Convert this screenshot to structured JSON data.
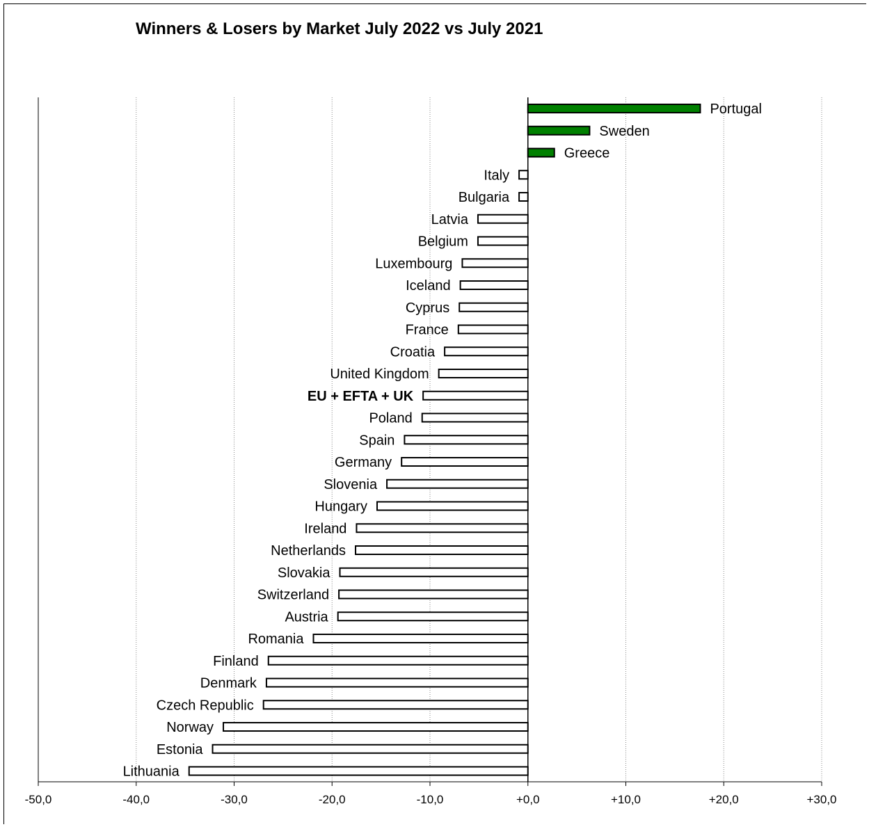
{
  "chart_data": {
    "type": "bar",
    "orientation": "horizontal",
    "title": "Winners & Losers by Market July 2022 vs July 2021",
    "xlabel": "",
    "ylabel": "",
    "xlim": [
      -50,
      30
    ],
    "x_ticks": [
      "-50,0",
      "-40,0",
      "-30,0",
      "-20,0",
      "-10,0",
      "+0,0",
      "+10,0",
      "+20,0",
      "+30,0"
    ],
    "grid": "vertical dotted",
    "positive_color": "#008000",
    "negative_color": "#ffffff",
    "bar_outline": "#000000",
    "bold_category": "EU + EFTA + UK",
    "categories": [
      "Portugal",
      "Sweden",
      "Greece",
      "Italy",
      "Bulgaria",
      "Latvia",
      "Belgium",
      "Luxembourg",
      "Iceland",
      "Cyprus",
      "France",
      "Croatia",
      "United Kingdom",
      "EU + EFTA + UK",
      "Poland",
      "Spain",
      "Germany",
      "Slovenia",
      "Hungary",
      "Ireland",
      "Netherlands",
      "Slovakia",
      "Switzerland",
      "Austria",
      "Romania",
      "Finland",
      "Denmark",
      "Czech Republic",
      "Norway",
      "Estonia",
      "Lithuania"
    ],
    "values": [
      17.6,
      6.3,
      2.7,
      -0.9,
      -0.9,
      -5.1,
      -5.1,
      -6.7,
      -6.9,
      -7.0,
      -7.1,
      -8.5,
      -9.1,
      -10.7,
      -10.8,
      -12.6,
      -12.9,
      -14.4,
      -15.4,
      -17.5,
      -17.6,
      -19.2,
      -19.3,
      -19.4,
      -21.9,
      -26.5,
      -26.7,
      -27.0,
      -31.1,
      -32.2,
      -34.6
    ]
  }
}
